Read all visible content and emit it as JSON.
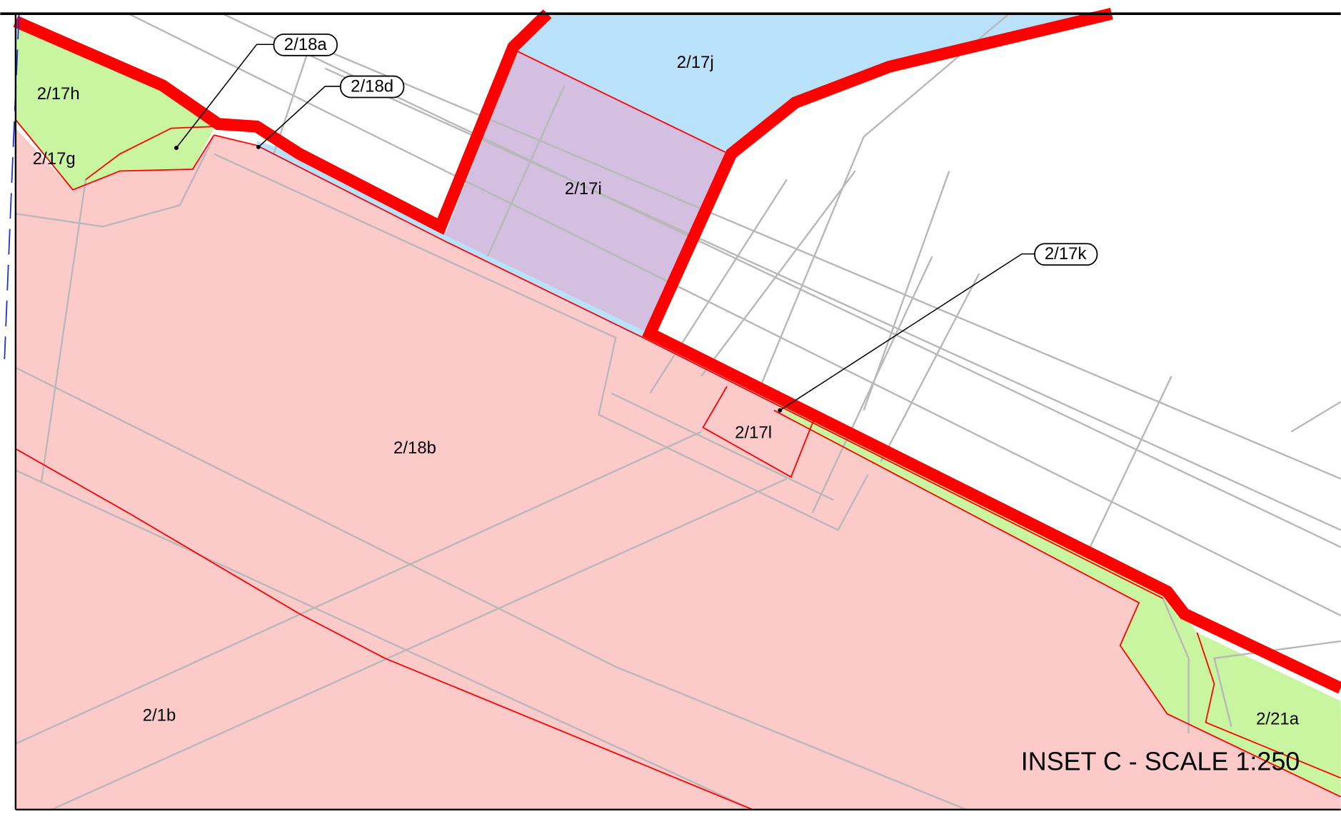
{
  "parcels": [
    {
      "label": "2/17h"
    },
    {
      "label": "2/17g"
    },
    {
      "label": "2/17j"
    },
    {
      "label": "2/17i"
    },
    {
      "label": "2/18b"
    },
    {
      "label": "2/17l"
    },
    {
      "label": "2/1b"
    },
    {
      "label": "2/21a"
    }
  ],
  "callouts": [
    {
      "label": "2/18a"
    },
    {
      "label": "2/18d"
    },
    {
      "label": "2/17k"
    }
  ],
  "inset_title": "INSET C - SCALE 1:250"
}
